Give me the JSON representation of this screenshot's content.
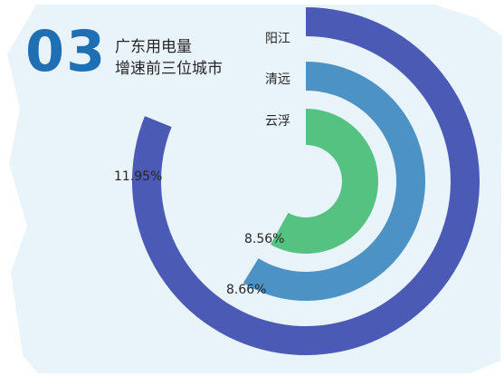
{
  "header": {
    "number": "03",
    "title_line1": "广东用电量",
    "title_line2": "增速前三位城市"
  },
  "colors": {
    "background_panel": "#e9f3fa",
    "number": "#1f6fb5",
    "yangjiang": "#4a5ab5",
    "qingyuan": "#4c92c4",
    "yunfu": "#55c282"
  },
  "chart_data": {
    "type": "radial-bar",
    "categories": [
      "阳江",
      "清远",
      "云浮"
    ],
    "values": [
      11.95,
      8.66,
      8.56
    ],
    "value_labels": [
      "11.95%",
      "8.66%",
      "8.56%"
    ],
    "unit": "%",
    "title": "广东用电量增速前三位城市"
  }
}
